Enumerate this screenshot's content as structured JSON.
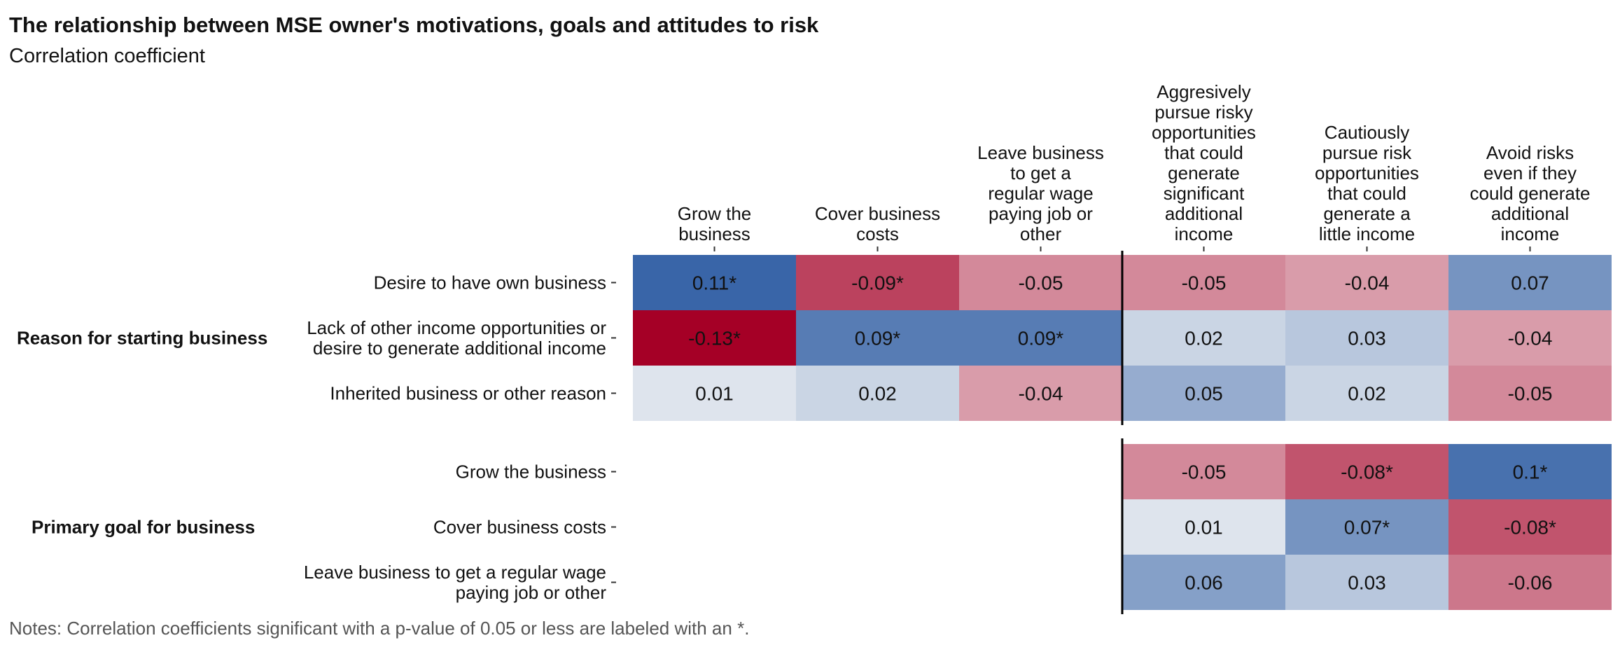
{
  "title": "The relationship between MSE owner's motivations, goals and attitudes to risk",
  "subtitle": "Correlation coefficient",
  "notes": "Notes: Correlation coefficients significant with a p-value of 0.05 or less are labeled with an *.",
  "chart_data": {
    "type": "heatmap",
    "columns": [
      "Grow the business",
      "Cover business costs",
      "Leave business to get a regular wage paying job or other",
      "Aggresively pursue risky opportunities that could generate significant additional income",
      "Cautiously pursue risk opportunities that could generate a little income",
      "Avoid risks even if they could generate additional income"
    ],
    "groups": [
      {
        "label": "Reason for starting business",
        "rows": [
          {
            "label": "Desire to have own business",
            "values": [
              0.11,
              -0.09,
              -0.05,
              -0.05,
              -0.04,
              0.07
            ],
            "significant": [
              true,
              true,
              false,
              false,
              false,
              false
            ]
          },
          {
            "label": "Lack of other income opportunities or desire to generate additional income",
            "values": [
              -0.13,
              0.09,
              0.09,
              0.02,
              0.03,
              -0.04
            ],
            "significant": [
              true,
              true,
              true,
              false,
              false,
              false
            ]
          },
          {
            "label": "Inherited business or other reason",
            "values": [
              0.01,
              0.02,
              -0.04,
              0.05,
              0.02,
              -0.05
            ],
            "significant": [
              false,
              false,
              false,
              false,
              false,
              false
            ]
          }
        ]
      },
      {
        "label": "Primary goal for business",
        "rows": [
          {
            "label": "Grow the business",
            "values": [
              null,
              null,
              null,
              -0.05,
              -0.08,
              0.1
            ],
            "significant": [
              false,
              false,
              false,
              false,
              true,
              true
            ]
          },
          {
            "label": "Cover business costs",
            "values": [
              null,
              null,
              null,
              0.01,
              0.07,
              -0.08
            ],
            "significant": [
              false,
              false,
              false,
              false,
              true,
              true
            ]
          },
          {
            "label": "Leave business to get a regular wage paying job or other",
            "values": [
              null,
              null,
              null,
              0.06,
              0.03,
              -0.06
            ],
            "significant": [
              false,
              false,
              false,
              false,
              false,
              false
            ]
          }
        ]
      }
    ],
    "color_scale": {
      "type": "diverging",
      "negative": "#a50026",
      "zero": "#f7f7f7",
      "positive": "#1c4f9c",
      "limit": 0.13
    },
    "significance_marker": "*"
  }
}
